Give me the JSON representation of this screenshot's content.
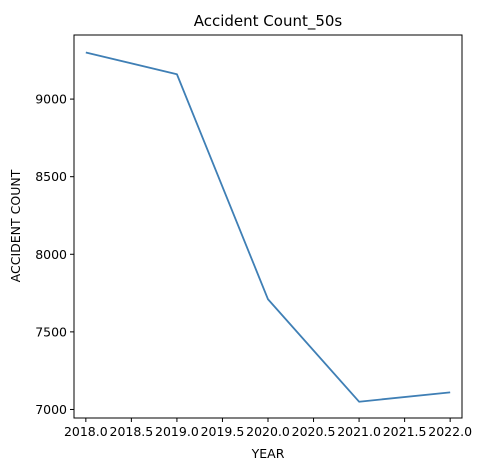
{
  "chart_data": {
    "type": "line",
    "title": "Accident Count_50s",
    "xlabel": "YEAR",
    "ylabel": "ACCIDENT COUNT",
    "x": [
      2018.0,
      2019.0,
      2020.0,
      2021.0,
      2022.0
    ],
    "series": [
      {
        "values": [
          9300,
          9160,
          7710,
          7050,
          7110
        ]
      }
    ],
    "xlim": [
      2017.87,
      2022.13
    ],
    "ylim": [
      6945,
      9413
    ],
    "x_ticks": [
      2018.0,
      2018.5,
      2019.0,
      2019.5,
      2020.0,
      2020.5,
      2021.0,
      2021.5,
      2022.0
    ],
    "x_tick_labels": [
      "2018.0",
      "2018.5",
      "2019.0",
      "2019.5",
      "2020.0",
      "2020.5",
      "2021.0",
      "2021.5",
      "2022.0"
    ],
    "y_ticks": [
      7000,
      7500,
      8000,
      8500,
      9000
    ],
    "y_tick_labels": [
      "7000",
      "7500",
      "8000",
      "8500",
      "9000"
    ],
    "grid": false,
    "line_color": "#3f7fb5"
  }
}
